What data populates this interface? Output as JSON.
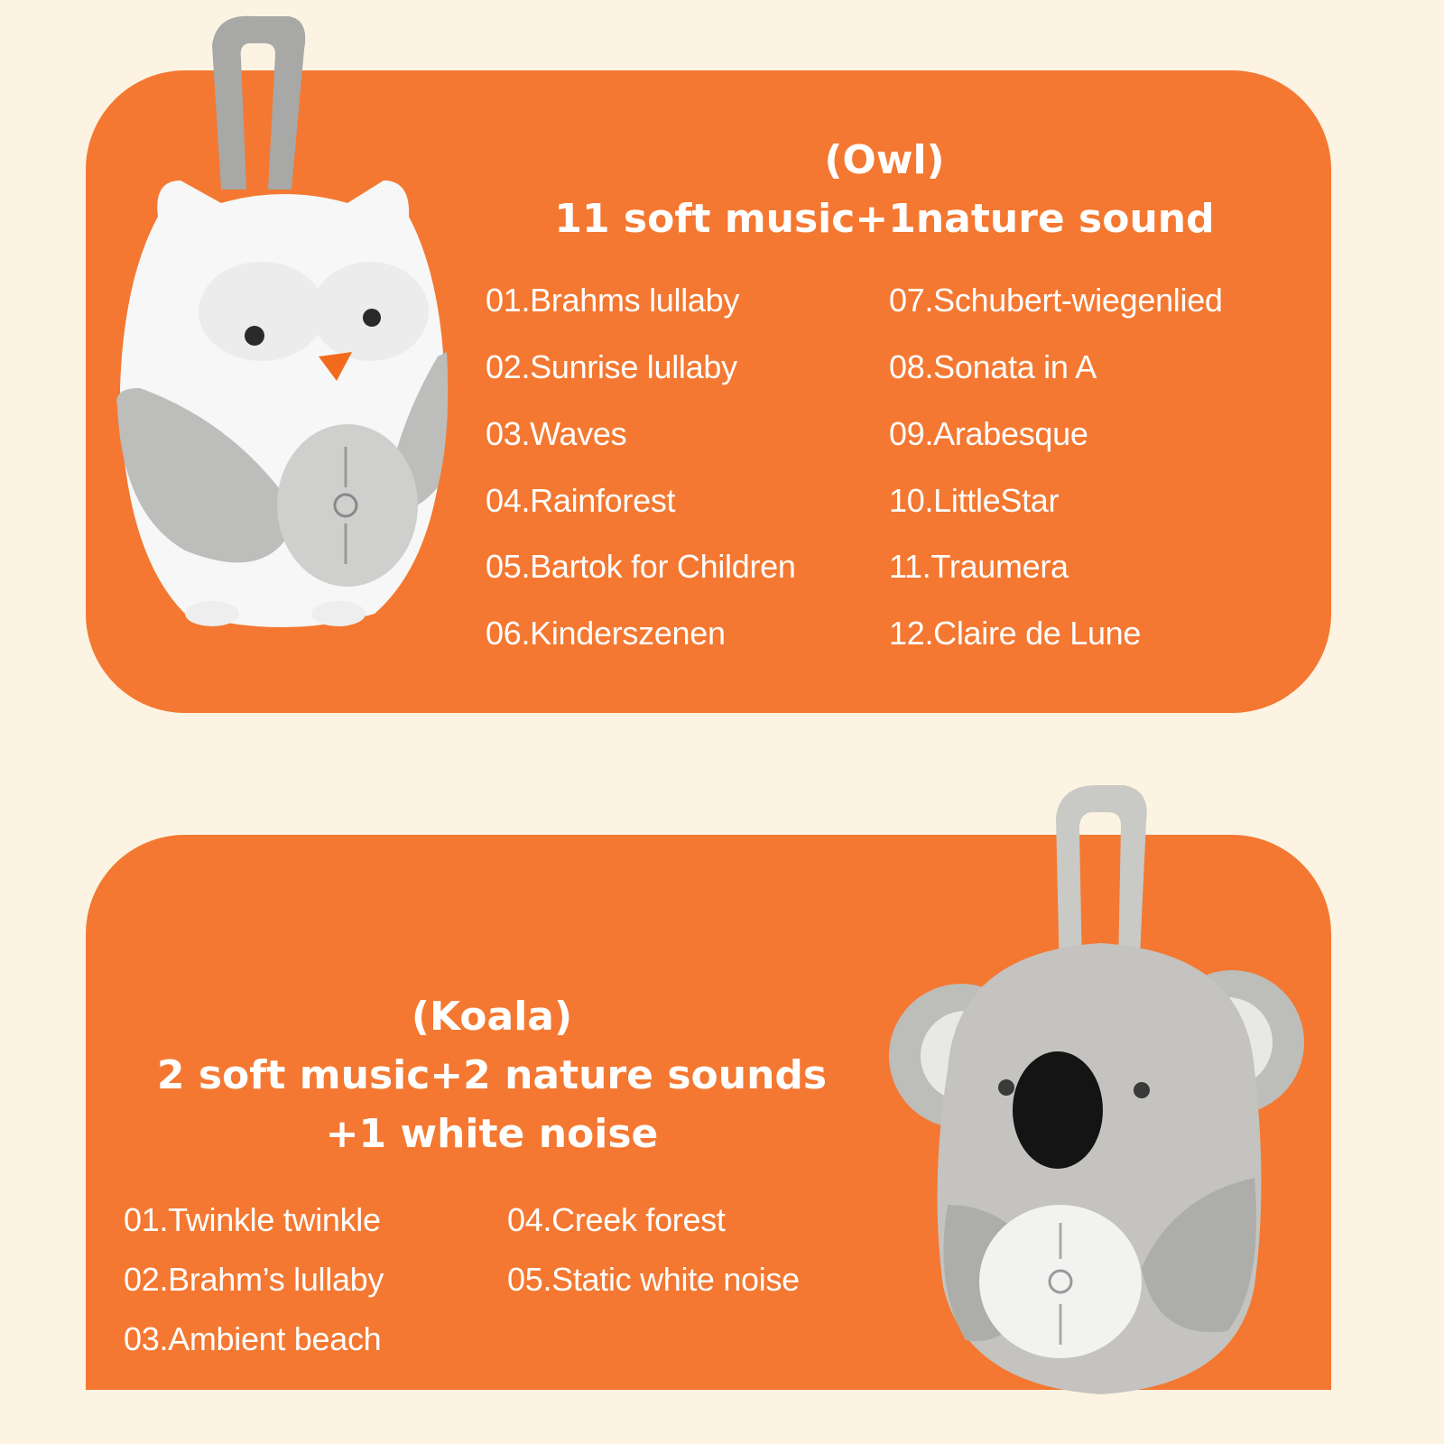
{
  "owl": {
    "title": "(Owl)",
    "subtitle": "11 soft music+1nature sound",
    "tracks_left": [
      "01.Brahms lullaby",
      "02.Sunrise lullaby",
      "03.Waves",
      "04.Rainforest",
      "05.Bartok for Children",
      "06.Kinderszenen"
    ],
    "tracks_right": [
      "07.Schubert-wiegenlied",
      "08.Sonata in A",
      "09.Arabesque",
      "10.LittleStar",
      "11.Traumera",
      "12.Claire de Lune"
    ]
  },
  "koala": {
    "title": "(Koala)",
    "subtitle_line1": "2 soft music+2 nature sounds",
    "subtitle_line2": "+1 white noise",
    "tracks_left": [
      "01.Twinkle twinkle",
      "02.Brahm’s lullaby",
      "03.Ambient beach"
    ],
    "tracks_right": [
      "04.Creek forest",
      "05.Static white noise"
    ]
  },
  "colors": {
    "panel": "#f47831",
    "background": "#fdf3e2",
    "text": "#ffffff"
  }
}
